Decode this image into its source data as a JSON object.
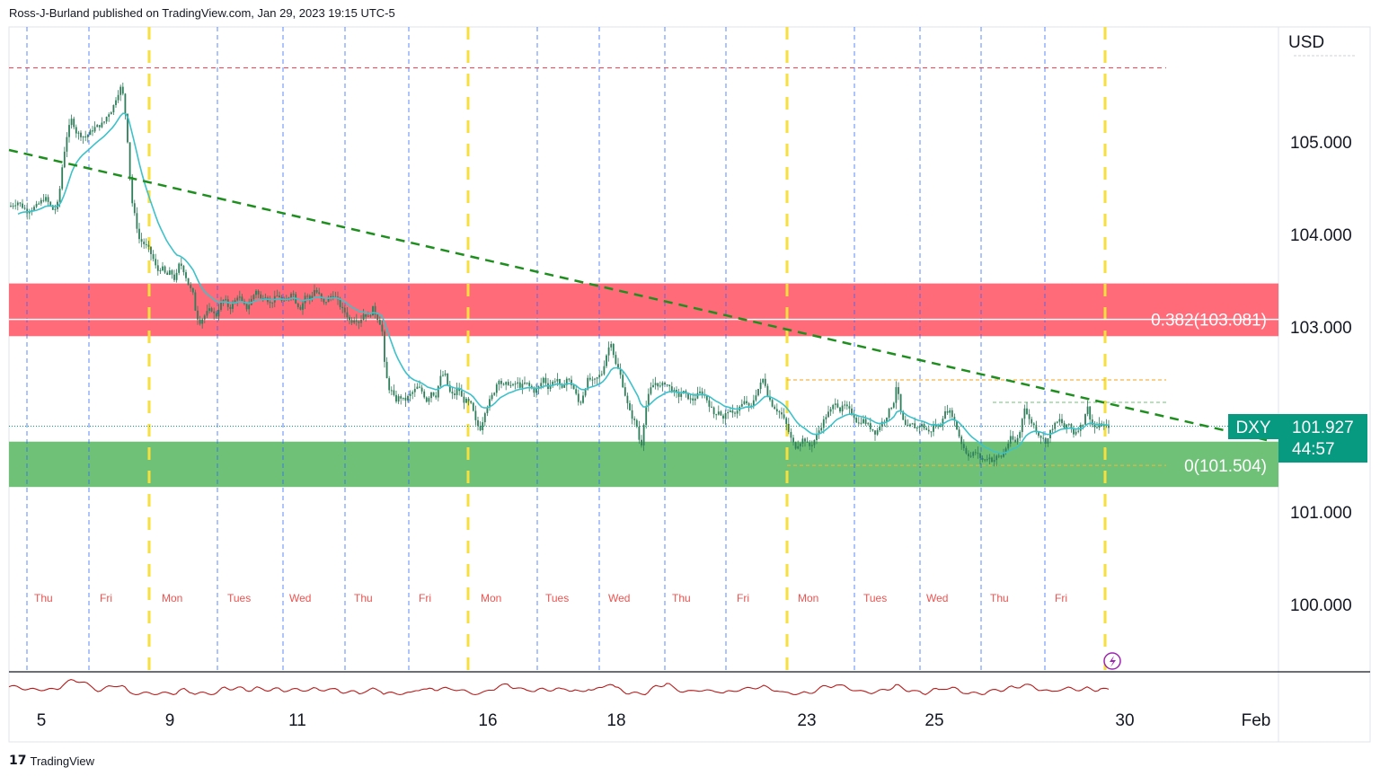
{
  "header": {
    "text": "Ross-J-Burland published on TradingView.com, Jan 29, 2023 19:15 UTC-5"
  },
  "footer": {
    "logo": "17",
    "brand": "TradingView"
  },
  "colors": {
    "resistance_zone": "#ff6b79",
    "support_zone": "#6fc177",
    "trendline": "#1e8f1e",
    "ema": "#3ec2c9",
    "candle": "#2f7d5b",
    "blue_guides": "#2962ff",
    "yellow_guides": "#f7df3d",
    "red_dotted": "#f23645",
    "indicator": "#b71c1c",
    "price_tag": "#089981"
  },
  "chart_data": {
    "type": "line",
    "symbol": "DXY",
    "currency": "USD",
    "timeframe_note": "intraday candlesticks",
    "price_axis": {
      "ticks": [
        "105.000",
        "104.000",
        "103.000",
        "101.000",
        "100.000"
      ],
      "range": [
        99.25,
        105.9
      ]
    },
    "date_axis": {
      "ticks": [
        "5",
        "9",
        "11",
        "16",
        "18",
        "23",
        "25",
        "30",
        "Feb"
      ]
    },
    "day_labels": [
      "Thu",
      "Fri",
      "Mon",
      "Tues",
      "Wed",
      "Thu",
      "Fri",
      "Mon",
      "Tues",
      "Wed",
      "Thu",
      "Fri",
      "Mon",
      "Tues",
      "Wed",
      "Thu",
      "Fri"
    ],
    "last_price": {
      "symbol": "DXY",
      "value": "101.927",
      "countdown": "44:57"
    },
    "fib_levels": [
      {
        "label": "0.382(103.081)",
        "value": 103.081
      },
      {
        "label": "0(101.504)",
        "value": 101.504
      }
    ],
    "zones": [
      {
        "name": "resistance",
        "from": 102.9,
        "to": 103.47
      },
      {
        "name": "support",
        "from": 101.27,
        "to": 101.76
      }
    ],
    "top_dotted_level": 105.8,
    "price_path": [
      [
        0,
        104.2
      ],
      [
        10,
        104.3
      ],
      [
        20,
        104.35
      ],
      [
        30,
        104.25
      ],
      [
        40,
        104.3
      ],
      [
        50,
        104.4
      ],
      [
        60,
        104.25
      ],
      [
        65,
        104.35
      ],
      [
        70,
        104.8
      ],
      [
        75,
        105.1
      ],
      [
        80,
        105.25
      ],
      [
        85,
        105.1
      ],
      [
        95,
        105.05
      ],
      [
        105,
        105.15
      ],
      [
        115,
        105.2
      ],
      [
        120,
        105.3
      ],
      [
        125,
        105.35
      ],
      [
        130,
        105.5
      ],
      [
        135,
        105.6
      ],
      [
        138,
        105.45
      ],
      [
        140,
        105.25
      ],
      [
        143,
        104.9
      ],
      [
        146,
        104.4
      ],
      [
        150,
        104.2
      ],
      [
        155,
        103.95
      ],
      [
        160,
        103.9
      ],
      [
        165,
        103.85
      ],
      [
        170,
        103.75
      ],
      [
        175,
        103.6
      ],
      [
        180,
        103.65
      ],
      [
        185,
        103.55
      ],
      [
        190,
        103.6
      ],
      [
        195,
        103.5
      ],
      [
        200,
        103.7
      ],
      [
        205,
        103.6
      ],
      [
        210,
        103.45
      ],
      [
        215,
        103.35
      ],
      [
        218,
        103.15
      ],
      [
        222,
        103.05
      ],
      [
        226,
        103.1
      ],
      [
        230,
        103.15
      ],
      [
        235,
        103.2
      ],
      [
        240,
        103.1
      ],
      [
        245,
        103.25
      ],
      [
        250,
        103.3
      ],
      [
        255,
        103.2
      ],
      [
        260,
        103.25
      ],
      [
        265,
        103.35
      ],
      [
        270,
        103.25
      ],
      [
        275,
        103.2
      ],
      [
        280,
        103.3
      ],
      [
        285,
        103.4
      ],
      [
        290,
        103.3
      ],
      [
        295,
        103.35
      ],
      [
        300,
        103.25
      ],
      [
        305,
        103.3
      ],
      [
        310,
        103.35
      ],
      [
        315,
        103.25
      ],
      [
        320,
        103.3
      ],
      [
        325,
        103.4
      ],
      [
        330,
        103.25
      ],
      [
        335,
        103.2
      ],
      [
        340,
        103.35
      ],
      [
        345,
        103.3
      ],
      [
        350,
        103.4
      ],
      [
        355,
        103.35
      ],
      [
        360,
        103.25
      ],
      [
        365,
        103.3
      ],
      [
        370,
        103.35
      ],
      [
        375,
        103.3
      ],
      [
        380,
        103.2
      ],
      [
        385,
        103.15
      ],
      [
        390,
        103.05
      ],
      [
        395,
        103.1
      ],
      [
        400,
        103.05
      ],
      [
        405,
        103.15
      ],
      [
        410,
        103.1
      ],
      [
        415,
        103.2
      ],
      [
        420,
        103.1
      ],
      [
        425,
        103.0
      ],
      [
        428,
        102.6
      ],
      [
        432,
        102.35
      ],
      [
        436,
        102.3
      ],
      [
        440,
        102.2
      ],
      [
        445,
        102.25
      ],
      [
        450,
        102.2
      ],
      [
        455,
        102.25
      ],
      [
        460,
        102.3
      ],
      [
        465,
        102.35
      ],
      [
        470,
        102.3
      ],
      [
        475,
        102.2
      ],
      [
        480,
        102.3
      ],
      [
        485,
        102.25
      ],
      [
        490,
        102.45
      ],
      [
        495,
        102.5
      ],
      [
        500,
        102.3
      ],
      [
        505,
        102.25
      ],
      [
        510,
        102.35
      ],
      [
        515,
        102.2
      ],
      [
        520,
        102.2
      ],
      [
        525,
        102.15
      ],
      [
        530,
        101.95
      ],
      [
        535,
        101.9
      ],
      [
        540,
        102.1
      ],
      [
        545,
        102.2
      ],
      [
        550,
        102.3
      ],
      [
        555,
        102.45
      ],
      [
        560,
        102.35
      ],
      [
        565,
        102.4
      ],
      [
        570,
        102.35
      ],
      [
        575,
        102.4
      ],
      [
        580,
        102.35
      ],
      [
        585,
        102.4
      ],
      [
        590,
        102.35
      ],
      [
        595,
        102.3
      ],
      [
        600,
        102.35
      ],
      [
        605,
        102.45
      ],
      [
        610,
        102.35
      ],
      [
        615,
        102.4
      ],
      [
        620,
        102.45
      ],
      [
        625,
        102.3
      ],
      [
        630,
        102.45
      ],
      [
        635,
        102.4
      ],
      [
        640,
        102.3
      ],
      [
        645,
        102.15
      ],
      [
        650,
        102.3
      ],
      [
        655,
        102.45
      ],
      [
        660,
        102.4
      ],
      [
        665,
        102.45
      ],
      [
        670,
        102.5
      ],
      [
        675,
        102.7
      ],
      [
        680,
        102.85
      ],
      [
        685,
        102.6
      ],
      [
        690,
        102.5
      ],
      [
        695,
        102.3
      ],
      [
        700,
        102.1
      ],
      [
        705,
        102.0
      ],
      [
        710,
        101.9
      ],
      [
        713,
        101.65
      ],
      [
        717,
        102.0
      ],
      [
        720,
        102.2
      ],
      [
        725,
        102.35
      ],
      [
        730,
        102.4
      ],
      [
        735,
        102.35
      ],
      [
        740,
        102.4
      ],
      [
        745,
        102.35
      ],
      [
        750,
        102.3
      ],
      [
        755,
        102.25
      ],
      [
        760,
        102.3
      ],
      [
        765,
        102.25
      ],
      [
        770,
        102.2
      ],
      [
        775,
        102.25
      ],
      [
        780,
        102.3
      ],
      [
        785,
        102.25
      ],
      [
        790,
        102.15
      ],
      [
        795,
        102.05
      ],
      [
        800,
        102.1
      ],
      [
        805,
        102.0
      ],
      [
        810,
        102.1
      ],
      [
        815,
        102.05
      ],
      [
        820,
        102.1
      ],
      [
        825,
        102.15
      ],
      [
        830,
        102.2
      ],
      [
        835,
        102.1
      ],
      [
        840,
        102.25
      ],
      [
        845,
        102.35
      ],
      [
        850,
        102.45
      ],
      [
        855,
        102.25
      ],
      [
        860,
        102.15
      ],
      [
        865,
        102.1
      ],
      [
        870,
        102.05
      ],
      [
        875,
        101.95
      ],
      [
        880,
        101.8
      ],
      [
        885,
        101.7
      ],
      [
        890,
        101.75
      ],
      [
        895,
        101.8
      ],
      [
        900,
        101.7
      ],
      [
        905,
        101.75
      ],
      [
        910,
        101.85
      ],
      [
        915,
        101.95
      ],
      [
        920,
        102.05
      ],
      [
        925,
        102.1
      ],
      [
        930,
        102.2
      ],
      [
        935,
        102.1
      ],
      [
        940,
        102.15
      ],
      [
        945,
        102.1
      ],
      [
        950,
        102.05
      ],
      [
        955,
        101.95
      ],
      [
        960,
        102.0
      ],
      [
        965,
        101.95
      ],
      [
        970,
        101.9
      ],
      [
        975,
        101.85
      ],
      [
        980,
        101.95
      ],
      [
        985,
        102.0
      ],
      [
        990,
        102.1
      ],
      [
        995,
        102.2
      ],
      [
        998,
        102.4
      ],
      [
        1002,
        102.1
      ],
      [
        1006,
        101.95
      ],
      [
        1010,
        101.9
      ],
      [
        1015,
        101.95
      ],
      [
        1020,
        101.9
      ],
      [
        1025,
        101.95
      ],
      [
        1030,
        101.9
      ],
      [
        1035,
        101.85
      ],
      [
        1040,
        101.95
      ],
      [
        1045,
        101.9
      ],
      [
        1050,
        102.05
      ],
      [
        1055,
        102.1
      ],
      [
        1060,
        102.05
      ],
      [
        1065,
        101.9
      ],
      [
        1070,
        101.75
      ],
      [
        1075,
        101.65
      ],
      [
        1080,
        101.6
      ],
      [
        1085,
        101.65
      ],
      [
        1090,
        101.6
      ],
      [
        1095,
        101.55
      ],
      [
        1100,
        101.6
      ],
      [
        1105,
        101.55
      ],
      [
        1110,
        101.6
      ],
      [
        1115,
        101.6
      ],
      [
        1120,
        101.7
      ],
      [
        1125,
        101.8
      ],
      [
        1130,
        101.75
      ],
      [
        1135,
        101.85
      ],
      [
        1140,
        102.15
      ],
      [
        1145,
        102.0
      ],
      [
        1150,
        101.95
      ],
      [
        1155,
        101.85
      ],
      [
        1160,
        101.8
      ],
      [
        1165,
        101.75
      ],
      [
        1170,
        101.9
      ],
      [
        1175,
        101.95
      ],
      [
        1180,
        102.0
      ],
      [
        1185,
        101.9
      ],
      [
        1190,
        101.95
      ],
      [
        1195,
        101.85
      ],
      [
        1200,
        101.9
      ],
      [
        1205,
        101.95
      ],
      [
        1210,
        102.15
      ],
      [
        1215,
        101.95
      ],
      [
        1220,
        101.9
      ],
      [
        1225,
        101.95
      ],
      [
        1230,
        101.92
      ],
      [
        1235,
        101.93
      ]
    ]
  }
}
